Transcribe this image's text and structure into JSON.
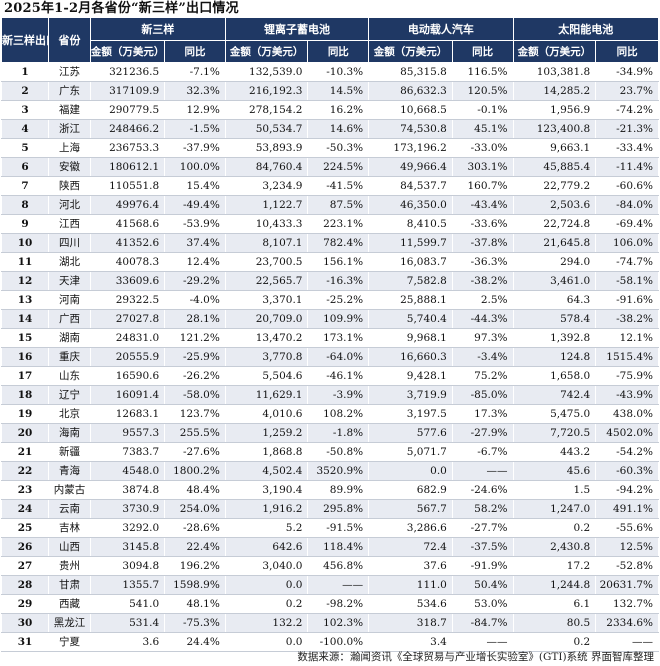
{
  "title": "2025年1-2月各省份“新三样”出口情况",
  "header": {
    "rank": "新三样出口额排名",
    "province": "省份",
    "groups": [
      "新三样",
      "锂离子蓄电池",
      "电动载人汽车",
      "太阳能电池"
    ],
    "amount": "金额（万美元）",
    "yoy": "同比"
  },
  "rows": [
    {
      "rank": "1",
      "province": "江苏",
      "cells": [
        "321236.5",
        "-7.1%",
        "132,539.0",
        "-10.3%",
        "85,315.8",
        "116.5%",
        "103,381.8",
        "-34.9%"
      ]
    },
    {
      "rank": "2",
      "province": "广东",
      "cells": [
        "317109.9",
        "32.3%",
        "216,192.3",
        "14.5%",
        "86,632.3",
        "120.5%",
        "14,285.2",
        "23.7%"
      ]
    },
    {
      "rank": "3",
      "province": "福建",
      "cells": [
        "290779.5",
        "12.9%",
        "278,154.2",
        "16.2%",
        "10,668.5",
        "-0.1%",
        "1,956.9",
        "-74.2%"
      ]
    },
    {
      "rank": "4",
      "province": "浙江",
      "cells": [
        "248466.2",
        "-1.5%",
        "50,534.7",
        "14.6%",
        "74,530.8",
        "45.1%",
        "123,400.8",
        "-21.3%"
      ]
    },
    {
      "rank": "5",
      "province": "上海",
      "cells": [
        "236753.3",
        "-37.9%",
        "53,893.9",
        "-50.3%",
        "173,196.2",
        "-33.0%",
        "9,663.1",
        "-33.4%"
      ]
    },
    {
      "rank": "6",
      "province": "安徽",
      "cells": [
        "180612.1",
        "100.0%",
        "84,760.4",
        "224.5%",
        "49,966.4",
        "303.1%",
        "45,885.4",
        "-11.4%"
      ]
    },
    {
      "rank": "7",
      "province": "陕西",
      "cells": [
        "110551.8",
        "15.4%",
        "3,234.9",
        "-41.5%",
        "84,537.7",
        "160.7%",
        "22,779.2",
        "-60.6%"
      ]
    },
    {
      "rank": "8",
      "province": "河北",
      "cells": [
        "49976.4",
        "-49.4%",
        "1,122.7",
        "87.5%",
        "46,350.0",
        "-43.4%",
        "2,503.6",
        "-84.0%"
      ]
    },
    {
      "rank": "9",
      "province": "江西",
      "cells": [
        "41568.6",
        "-53.9%",
        "10,433.3",
        "223.1%",
        "8,410.5",
        "-33.6%",
        "22,724.8",
        "-69.4%"
      ]
    },
    {
      "rank": "10",
      "province": "四川",
      "cells": [
        "41352.6",
        "37.4%",
        "8,107.1",
        "782.4%",
        "11,599.7",
        "-37.8%",
        "21,645.8",
        "106.0%"
      ]
    },
    {
      "rank": "11",
      "province": "湖北",
      "cells": [
        "40078.3",
        "12.4%",
        "23,700.5",
        "156.1%",
        "16,083.7",
        "-36.3%",
        "294.0",
        "-74.7%"
      ]
    },
    {
      "rank": "12",
      "province": "天津",
      "cells": [
        "33609.6",
        "-29.2%",
        "22,565.7",
        "-16.3%",
        "7,582.8",
        "-38.2%",
        "3,461.0",
        "-58.1%"
      ]
    },
    {
      "rank": "13",
      "province": "河南",
      "cells": [
        "29322.5",
        "-4.0%",
        "3,370.1",
        "-25.2%",
        "25,888.1",
        "2.5%",
        "64.3",
        "-91.6%"
      ]
    },
    {
      "rank": "14",
      "province": "广西",
      "cells": [
        "27027.8",
        "28.1%",
        "20,709.0",
        "109.9%",
        "5,740.4",
        "-44.3%",
        "578.4",
        "-38.2%"
      ]
    },
    {
      "rank": "15",
      "province": "湖南",
      "cells": [
        "24831.0",
        "121.2%",
        "13,470.2",
        "173.1%",
        "9,968.1",
        "97.3%",
        "1,392.8",
        "12.1%"
      ]
    },
    {
      "rank": "16",
      "province": "重庆",
      "cells": [
        "20555.9",
        "-25.9%",
        "3,770.8",
        "-64.0%",
        "16,660.3",
        "-3.4%",
        "124.8",
        "1515.4%"
      ]
    },
    {
      "rank": "17",
      "province": "山东",
      "cells": [
        "16590.6",
        "-26.2%",
        "5,504.6",
        "-46.1%",
        "9,428.1",
        "75.2%",
        "1,658.0",
        "-75.9%"
      ]
    },
    {
      "rank": "18",
      "province": "辽宁",
      "cells": [
        "16091.4",
        "-58.0%",
        "11,629.1",
        "-3.9%",
        "3,719.9",
        "-85.0%",
        "742.4",
        "-43.9%"
      ]
    },
    {
      "rank": "19",
      "province": "北京",
      "cells": [
        "12683.1",
        "123.7%",
        "4,010.6",
        "108.2%",
        "3,197.5",
        "17.3%",
        "5,475.0",
        "438.0%"
      ]
    },
    {
      "rank": "20",
      "province": "海南",
      "cells": [
        "9557.3",
        "255.5%",
        "1,259.2",
        "-1.8%",
        "577.6",
        "-27.9%",
        "7,720.5",
        "4502.0%"
      ]
    },
    {
      "rank": "21",
      "province": "新疆",
      "cells": [
        "7383.7",
        "-27.6%",
        "1,868.8",
        "-50.8%",
        "5,071.7",
        "-6.7%",
        "443.2",
        "-54.2%"
      ]
    },
    {
      "rank": "22",
      "province": "青海",
      "cells": [
        "4548.0",
        "1800.2%",
        "4,502.4",
        "3520.9%",
        "0.0",
        "——",
        "45.6",
        "-60.3%"
      ]
    },
    {
      "rank": "23",
      "province": "内蒙古",
      "cells": [
        "3874.8",
        "48.4%",
        "3,190.4",
        "89.9%",
        "682.9",
        "-24.6%",
        "1.5",
        "-94.2%"
      ]
    },
    {
      "rank": "24",
      "province": "云南",
      "cells": [
        "3730.9",
        "254.0%",
        "1,916.2",
        "295.8%",
        "567.7",
        "58.2%",
        "1,247.0",
        "491.1%"
      ]
    },
    {
      "rank": "25",
      "province": "吉林",
      "cells": [
        "3292.0",
        "-28.6%",
        "5.2",
        "-91.5%",
        "3,286.6",
        "-27.7%",
        "0.2",
        "-55.6%"
      ]
    },
    {
      "rank": "26",
      "province": "山西",
      "cells": [
        "3145.8",
        "22.4%",
        "642.6",
        "118.4%",
        "72.4",
        "-37.5%",
        "2,430.8",
        "12.5%"
      ]
    },
    {
      "rank": "27",
      "province": "贵州",
      "cells": [
        "3094.8",
        "196.2%",
        "3,040.0",
        "456.8%",
        "37.6",
        "-91.9%",
        "17.2",
        "-52.8%"
      ]
    },
    {
      "rank": "28",
      "province": "甘肃",
      "cells": [
        "1355.7",
        "1598.9%",
        "0.0",
        "——",
        "111.0",
        "50.4%",
        "1,244.8",
        "20631.7%"
      ]
    },
    {
      "rank": "29",
      "province": "西藏",
      "cells": [
        "541.0",
        "48.1%",
        "0.2",
        "-98.2%",
        "534.6",
        "53.0%",
        "6.1",
        "132.7%"
      ]
    },
    {
      "rank": "30",
      "province": "黑龙江",
      "cells": [
        "531.4",
        "-75.3%",
        "132.2",
        "102.3%",
        "318.7",
        "-84.7%",
        "80.5",
        "2334.6%"
      ]
    },
    {
      "rank": "31",
      "province": "宁夏",
      "cells": [
        "3.6",
        "24.4%",
        "0.0",
        "-100.0%",
        "3.4",
        "——",
        "0.2",
        "——"
      ]
    }
  ],
  "footer": "数据来源：瀚闻资讯《全球贸易与产业增长实验室》(GTI)系统  界面智库整理"
}
